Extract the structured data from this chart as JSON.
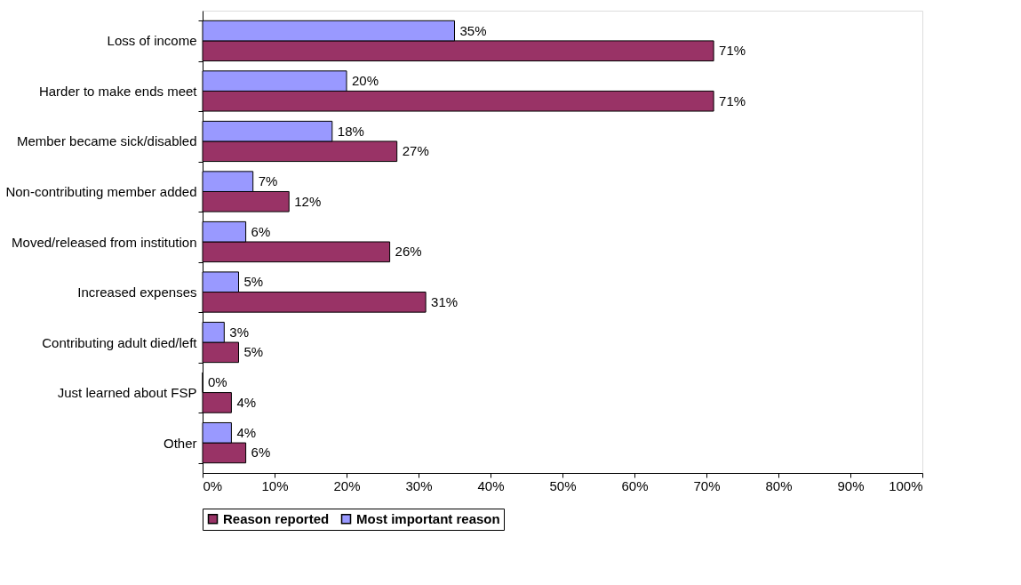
{
  "chart_data": {
    "type": "bar",
    "orientation": "horizontal",
    "categories": [
      "Loss of income",
      "Harder to make ends meet",
      "Member became sick/disabled",
      "Non-contributing member added",
      "Moved/released from institution",
      "Increased expenses",
      "Contributing adult died/left",
      "Just learned about FSP",
      "Other"
    ],
    "series": [
      {
        "name": "Reason reported",
        "color": "#993366",
        "values": [
          71,
          71,
          27,
          12,
          26,
          31,
          5,
          4,
          6
        ],
        "value_labels": [
          "71%",
          "71%",
          "27%",
          "12%",
          "26%",
          "31%",
          "5%",
          "4%",
          "6%"
        ]
      },
      {
        "name": "Most important reason",
        "color": "#9999ff",
        "values": [
          35,
          20,
          18,
          7,
          6,
          5,
          3,
          0,
          4
        ],
        "value_labels": [
          "35%",
          "20%",
          "18%",
          "7%",
          "6%",
          "5%",
          "3%",
          "0%",
          "4%"
        ]
      }
    ],
    "xlim": [
      0,
      100
    ],
    "xticks": [
      {
        "value": 0,
        "label": "0%"
      },
      {
        "value": 10,
        "label": "10%"
      },
      {
        "value": 20,
        "label": "20%"
      },
      {
        "value": 30,
        "label": "30%"
      },
      {
        "value": 40,
        "label": "40%"
      },
      {
        "value": 50,
        "label": "50%"
      },
      {
        "value": 60,
        "label": "60%"
      },
      {
        "value": 70,
        "label": "70%"
      },
      {
        "value": 80,
        "label": "80%"
      },
      {
        "value": 90,
        "label": "90%"
      },
      {
        "value": 100,
        "label": "100%"
      }
    ],
    "grid": false,
    "legend": "bottom"
  }
}
